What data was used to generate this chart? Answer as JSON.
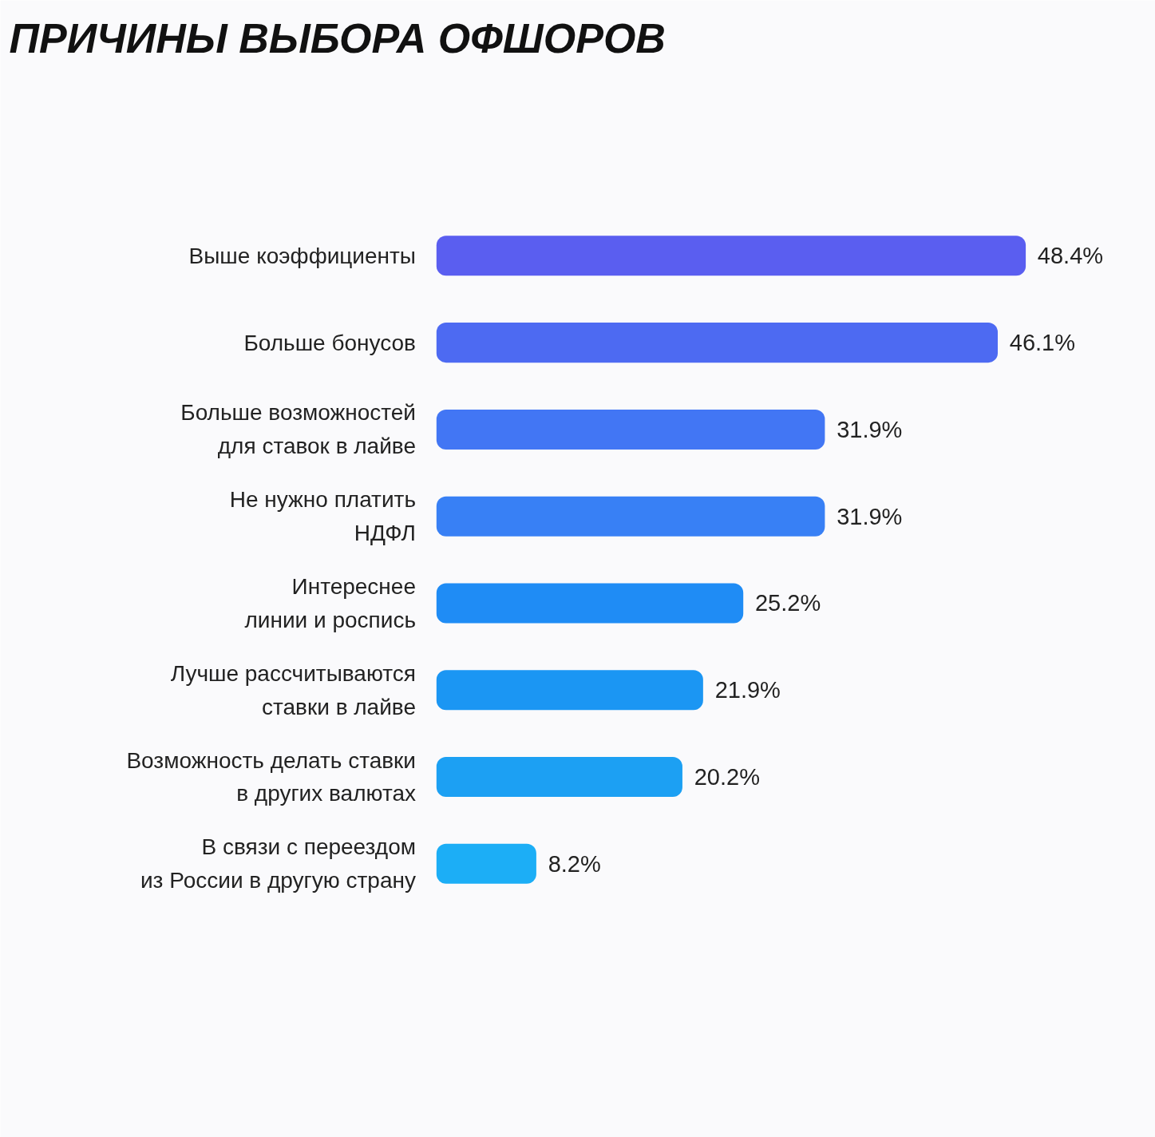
{
  "chart_data": {
    "type": "bar",
    "orientation": "horizontal",
    "title": "ПРИЧИНЫ ВЫБОРА ОФШОРОВ",
    "categories": [
      "Выше коэффициенты",
      "Больше бонусов",
      "Больше возможностей\nдля ставок в лайве",
      "Не нужно платить\nНДФЛ",
      "Интереснее\nлинии и роспись",
      "Лучше рассчитываются\nставки в лайве",
      "Возможность делать ставки\nв других валютах",
      "В связи с переездом\nиз России в другую страну"
    ],
    "values": [
      48.4,
      46.1,
      31.9,
      31.9,
      25.2,
      21.9,
      20.2,
      8.2
    ],
    "value_labels": [
      "48.4%",
      "46.1%",
      "31.9%",
      "31.9%",
      "25.2%",
      "21.9%",
      "20.2%",
      "8.2%"
    ],
    "colors": [
      "#5a5ef0",
      "#4d6af2",
      "#4276f4",
      "#3880f5",
      "#1f8cf5",
      "#1b96f3",
      "#1ca0f3",
      "#1caef6"
    ],
    "grid": false
  }
}
